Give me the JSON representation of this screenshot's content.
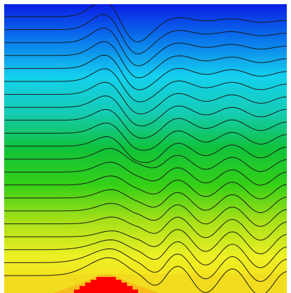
{
  "colors": {
    "frame_background": "#ffffff",
    "contour_line": "#1a1a1a",
    "hot_region": "#ff0000",
    "gradient_stops": [
      "#0a1ee6",
      "#0a78ec",
      "#14d0ee",
      "#14ccb4",
      "#10c23a",
      "#34d016",
      "#a8e018",
      "#eef024",
      "#f8d818"
    ]
  },
  "field": {
    "description_visible": false,
    "contour_count": 21,
    "legend": "none",
    "axes": "none"
  }
}
